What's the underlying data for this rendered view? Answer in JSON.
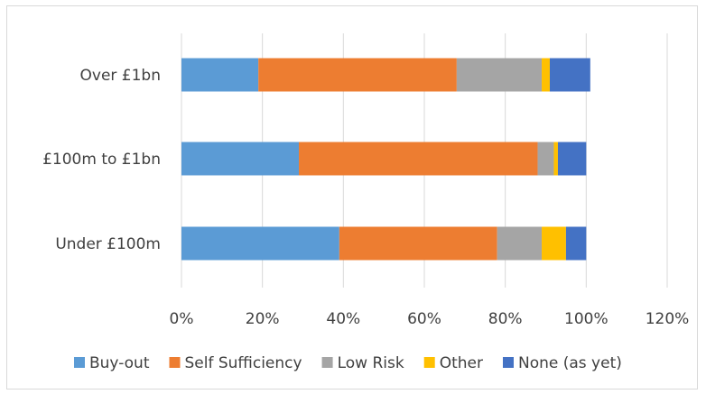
{
  "chart_data": {
    "type": "bar",
    "orientation": "horizontal",
    "stacked": true,
    "categories": [
      "Over £1bn",
      "£100m to £1bn",
      "Under £100m"
    ],
    "series": [
      {
        "name": "Buy-out",
        "color": "#5b9bd5",
        "values": [
          19,
          29,
          39
        ]
      },
      {
        "name": "Self Sufficiency",
        "color": "#ed7d31",
        "values": [
          49,
          59,
          39
        ]
      },
      {
        "name": "Low Risk",
        "color": "#a5a5a5",
        "values": [
          21,
          4,
          11
        ]
      },
      {
        "name": "Other",
        "color": "#ffc000",
        "values": [
          2,
          1,
          6
        ]
      },
      {
        "name": "None (as yet)",
        "color": "#4472c4",
        "values": [
          10,
          7,
          5
        ]
      }
    ],
    "xlim": [
      0,
      120
    ],
    "xticks": [
      "0%",
      "20%",
      "40%",
      "60%",
      "80%",
      "100%",
      "120%"
    ],
    "grid": true,
    "legend_position": "bottom",
    "title": "",
    "xlabel": "",
    "ylabel": ""
  }
}
